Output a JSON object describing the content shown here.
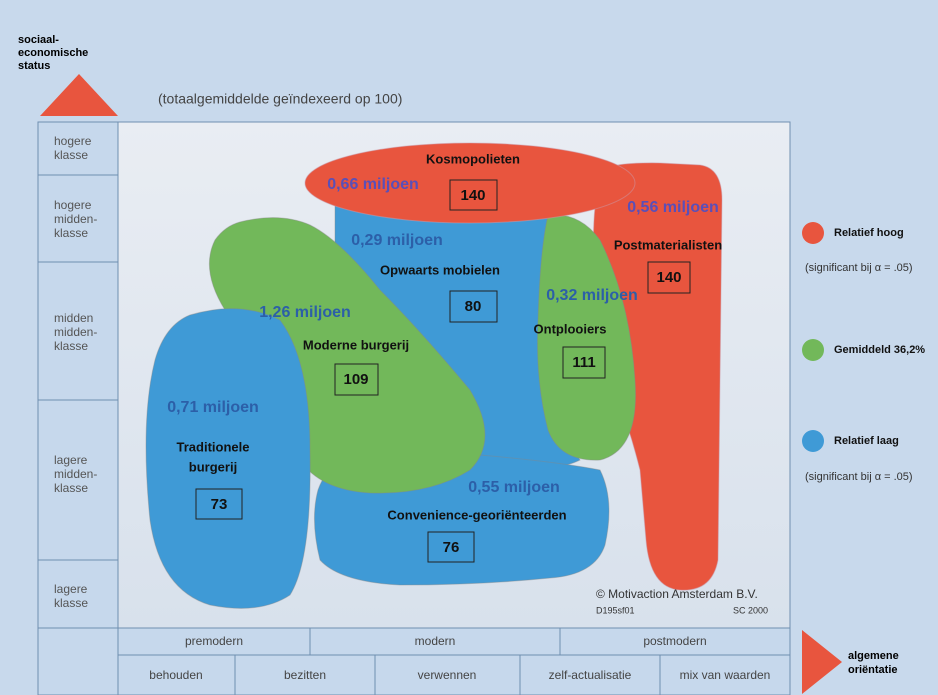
{
  "y_axis": {
    "lines": [
      "sociaal-",
      "economische",
      "status"
    ]
  },
  "subtitle": "(totaalgemiddelde geïndexeerd op 100)",
  "rows": [
    [
      "hogere",
      "klasse"
    ],
    [
      "hogere",
      "midden-",
      "klasse"
    ],
    [
      "midden",
      "midden-",
      "klasse"
    ],
    [
      "lagere",
      "midden-",
      "klasse"
    ],
    [
      "lagere",
      "klasse"
    ]
  ],
  "orientation": {
    "groups": [
      "premodern",
      "modern",
      "postmodern"
    ],
    "values": [
      "behouden",
      "bezitten",
      "verwennen",
      "zelf-actualisatie",
      "mix van waarden"
    ]
  },
  "x_axis": {
    "lines": [
      "algemene",
      "oriëntatie"
    ]
  },
  "segments": [
    {
      "name": [
        "Kosmopolieten"
      ],
      "population": "0,66 miljoen",
      "index": 140
    },
    {
      "name": [
        "Postmaterialisten"
      ],
      "population": "0,56 miljoen",
      "index": 140
    },
    {
      "name": [
        "Opwaarts mobielen"
      ],
      "population": "0,29 miljoen",
      "index": 80
    },
    {
      "name": [
        "Ontplooiers"
      ],
      "population": "0,32 miljoen",
      "index": 111
    },
    {
      "name": [
        "Moderne burgerij"
      ],
      "population": "1,26 miljoen",
      "index": 109
    },
    {
      "name": [
        "Traditionele",
        "burgerij"
      ],
      "population": "0,71 miljoen",
      "index": 73
    },
    {
      "name": [
        "Convenience-georiënteerden"
      ],
      "population": "0,55 miljoen",
      "index": 76
    }
  ],
  "legend": [
    {
      "label": "Relatief hoog",
      "note": "(significant bij α = .05)"
    },
    {
      "label": "Gemiddeld 36,2%"
    },
    {
      "label": "Relatief laag",
      "note": "(significant bij α = .05)"
    }
  ],
  "credits": {
    "copyright": "© Motivaction Amsterdam B.V.",
    "code": "D195sf01",
    "year": "SC 2000"
  }
}
